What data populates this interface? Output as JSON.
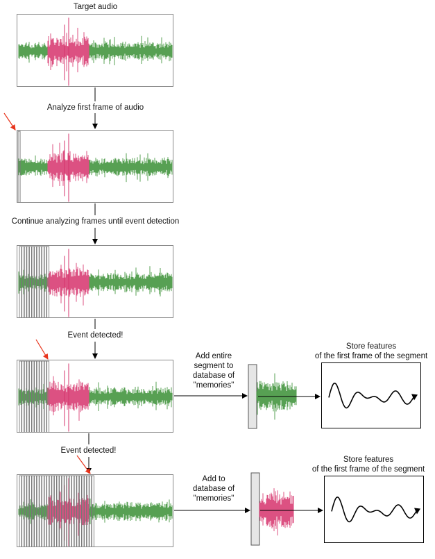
{
  "labels": {
    "target_audio": "Target audio",
    "analyze_first": "Analyze first frame of audio",
    "continue_analyzing": "Continue analyzing frames until event detection",
    "event_detected_1": "Event detected!",
    "event_detected_2": "Event detected!",
    "add_entire_1": "Add entire",
    "add_entire_2": "segment to",
    "add_entire_3": "database of",
    "add_entire_4": "\"memories\"",
    "add_to_1": "Add to",
    "add_to_2": "database of",
    "add_to_3": "\"memories\"",
    "store_1a": "Store features",
    "store_1b": "of the first frame of the segment",
    "store_2a": "Store features",
    "store_2b": "of the first frame of the segment"
  },
  "colors": {
    "normal_wave": "#3a8f35",
    "event_wave": "#d6336c",
    "frame_line": "#777777",
    "pointer_arrow": "#e8341c",
    "flow_arrow": "#000000"
  }
}
